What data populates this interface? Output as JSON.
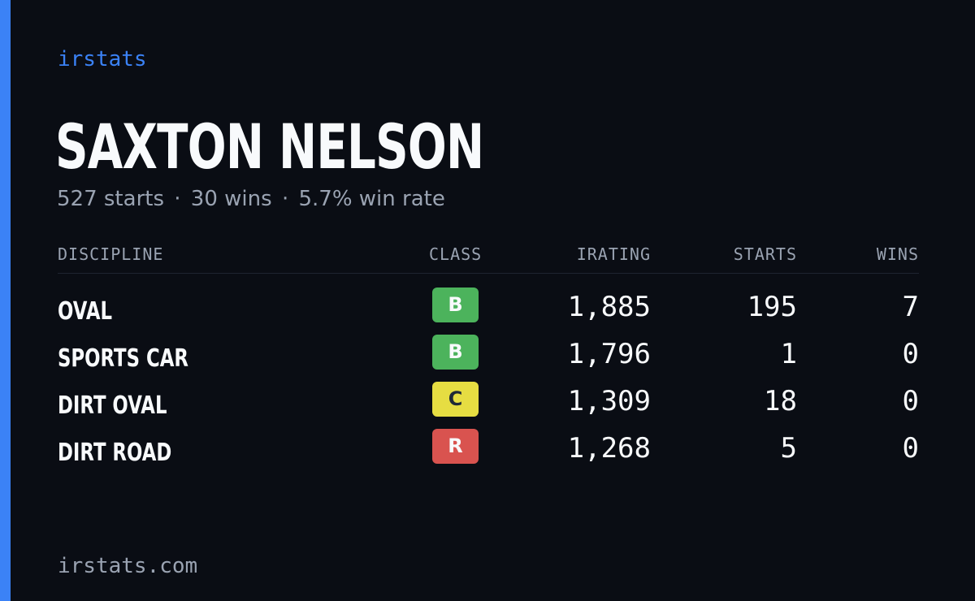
{
  "brand": "irstats",
  "driver": {
    "name": "SAXTON NELSON",
    "summary": {
      "starts": "527 starts",
      "wins": "30 wins",
      "win_rate": "5.7% win rate",
      "separator": "·"
    }
  },
  "table": {
    "headers": {
      "discipline": "DISCIPLINE",
      "class": "CLASS",
      "irating": "IRATING",
      "starts": "STARTS",
      "wins": "WINS"
    },
    "rows": [
      {
        "discipline": "OVAL",
        "class": "B",
        "class_color": "#4cb35c",
        "irating": "1,885",
        "starts": "195",
        "wins": "7"
      },
      {
        "discipline": "SPORTS CAR",
        "class": "B",
        "class_color": "#4cb35c",
        "irating": "1,796",
        "starts": "1",
        "wins": "0"
      },
      {
        "discipline": "DIRT OVAL",
        "class": "C",
        "class_color": "#e6dd42",
        "irating": "1,309",
        "starts": "18",
        "wins": "0"
      },
      {
        "discipline": "DIRT ROAD",
        "class": "R",
        "class_color": "#d9534f",
        "irating": "1,268",
        "starts": "5",
        "wins": "0"
      }
    ]
  },
  "footer": {
    "site": "irstats.com"
  },
  "colors": {
    "background": "#0a0d14",
    "accent": "#3b82f6",
    "muted_text": "#9aa3b2"
  }
}
